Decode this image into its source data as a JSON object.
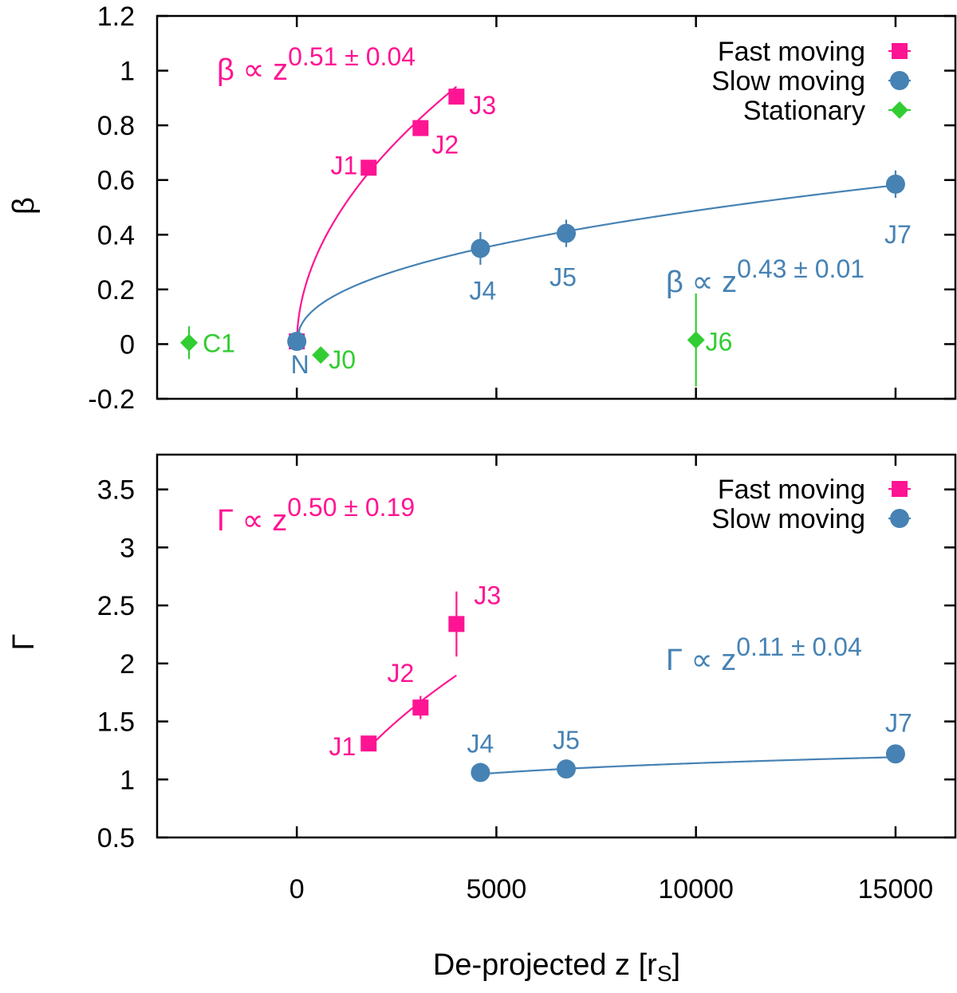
{
  "chart_data": [
    {
      "id": "beta-panel",
      "type": "scatter",
      "ylabel": "β",
      "xlim": [
        -3500,
        16500
      ],
      "ylim": [
        -0.2,
        1.2
      ],
      "x_ticks": [
        0,
        5000,
        10000,
        15000
      ],
      "y_ticks": [
        -0.2,
        0,
        0.2,
        0.4,
        0.6,
        0.8,
        1,
        1.2
      ],
      "y_tick_labels": [
        "-0.2",
        "0",
        "0.2",
        "0.4",
        "0.6",
        "0.8",
        "1",
        "1.2"
      ],
      "legend_position": "top-right",
      "legend": [
        {
          "label": "Fast moving",
          "marker": "square",
          "color": "#ff1493"
        },
        {
          "label": "Slow moving",
          "marker": "circle",
          "color": "#4682b4"
        },
        {
          "label": "Stationary",
          "marker": "diamond",
          "color": "#32cd32"
        }
      ],
      "series": [
        {
          "name": "Fast moving",
          "marker": "square",
          "color": "#ff1493",
          "points": [
            {
              "label": "N",
              "x": 0,
              "y": 0.01,
              "err": 0
            },
            {
              "label": "J1",
              "x": 1800,
              "y": 0.645,
              "err": 0.02
            },
            {
              "label": "J2",
              "x": 3100,
              "y": 0.79,
              "err": 0.02
            },
            {
              "label": "J3",
              "x": 4000,
              "y": 0.905,
              "err": 0.02
            }
          ],
          "fit": {
            "coef": 0.0137,
            "power": 0.51,
            "x_from": 0,
            "x_to": 4000
          },
          "fit_label": {
            "base": "β ∝ z",
            "exponent": "0.51 ± 0.04"
          }
        },
        {
          "name": "Slow moving",
          "marker": "circle",
          "color": "#4682b4",
          "points": [
            {
              "label": "N",
              "x": 0,
              "y": 0.01,
              "err": 0
            },
            {
              "label": "J4",
              "x": 4600,
              "y": 0.35,
              "err": 0.06
            },
            {
              "label": "J5",
              "x": 6750,
              "y": 0.405,
              "err": 0.05
            },
            {
              "label": "J7",
              "x": 15000,
              "y": 0.585,
              "err": 0.05
            }
          ],
          "fit": {
            "coef": 0.0093,
            "power": 0.43,
            "x_from": 0,
            "x_to": 15000
          },
          "fit_label": {
            "base": "β ∝ z",
            "exponent": "0.43 ± 0.01"
          }
        },
        {
          "name": "Stationary",
          "marker": "diamond",
          "color": "#32cd32",
          "points": [
            {
              "label": "C1",
              "x": -2700,
              "y": 0.005,
              "err": 0.06
            },
            {
              "label": "J0",
              "x": 600,
              "y": -0.04,
              "err": 0.02
            },
            {
              "label": "J6",
              "x": 10000,
              "y": 0.015,
              "err": 0.17
            }
          ]
        }
      ]
    },
    {
      "id": "gamma-panel",
      "type": "scatter",
      "ylabel": "Γ",
      "xlabel_base": "De-projected z [r",
      "xlabel_sub": "S",
      "xlabel_end": "]",
      "xlim": [
        -3500,
        16500
      ],
      "ylim": [
        0.5,
        3.8
      ],
      "x_ticks": [
        0,
        5000,
        10000,
        15000
      ],
      "x_tick_labels": [
        "0",
        "5000",
        "10000",
        "15000"
      ],
      "y_ticks": [
        0.5,
        1,
        1.5,
        2,
        2.5,
        3,
        3.5
      ],
      "y_tick_labels": [
        "0.5",
        "1",
        "1.5",
        "2",
        "2.5",
        "3",
        "3.5"
      ],
      "legend_position": "top-right",
      "legend": [
        {
          "label": "Fast moving",
          "marker": "square",
          "color": "#ff1493"
        },
        {
          "label": "Slow moving",
          "marker": "circle",
          "color": "#4682b4"
        }
      ],
      "series": [
        {
          "name": "Fast moving",
          "marker": "square",
          "color": "#ff1493",
          "points": [
            {
              "label": "J1",
              "x": 1800,
              "y": 1.31,
              "err": 0.02
            },
            {
              "label": "J2",
              "x": 3100,
              "y": 1.62,
              "err": 0.1
            },
            {
              "label": "J3",
              "x": 4000,
              "y": 2.34,
              "err": 0.28
            }
          ],
          "fit": {
            "coef": 0.03,
            "power": 0.5,
            "x_from": 1800,
            "x_to": 4000
          },
          "fit_label": {
            "base": "Γ ∝ z",
            "exponent": "0.50 ± 0.19"
          }
        },
        {
          "name": "Slow moving",
          "marker": "circle",
          "color": "#4682b4",
          "points": [
            {
              "label": "J4",
              "x": 4600,
              "y": 1.06,
              "err": 0.01
            },
            {
              "label": "J5",
              "x": 6750,
              "y": 1.09,
              "err": 0.01
            },
            {
              "label": "J7",
              "x": 15000,
              "y": 1.22,
              "err": 0.02
            }
          ],
          "fit": {
            "coef": 0.414,
            "power": 0.11,
            "x_from": 4600,
            "x_to": 15000
          },
          "fit_label": {
            "base": "Γ ∝ z",
            "exponent": "0.11 ± 0.04"
          }
        }
      ]
    }
  ]
}
